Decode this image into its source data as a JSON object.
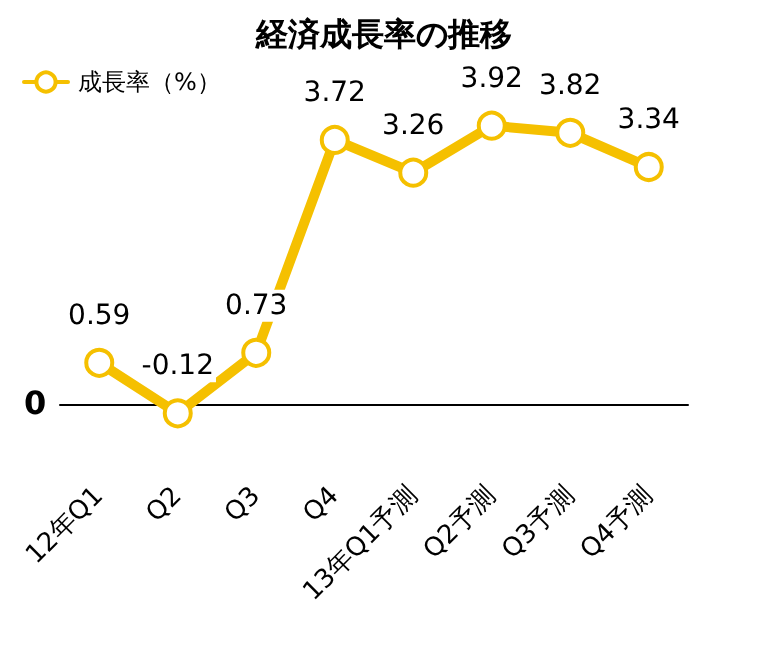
{
  "chart_data": {
    "type": "line",
    "title": "経済成長率の推移",
    "categories": [
      "12年Q1",
      "Q2",
      "Q3",
      "Q4",
      "13年Q1予測",
      "Q2予測",
      "Q3予測",
      "Q4予測"
    ],
    "series": [
      {
        "name": "成長率（%）",
        "color": "#f5c000",
        "values": [
          0.59,
          -0.12,
          0.73,
          3.72,
          3.26,
          3.92,
          3.82,
          3.34
        ]
      }
    ],
    "annotations": [
      "0"
    ],
    "grid": false,
    "legend": "top left",
    "marker": "circle",
    "line_style": "solid",
    "data_labels": true
  }
}
